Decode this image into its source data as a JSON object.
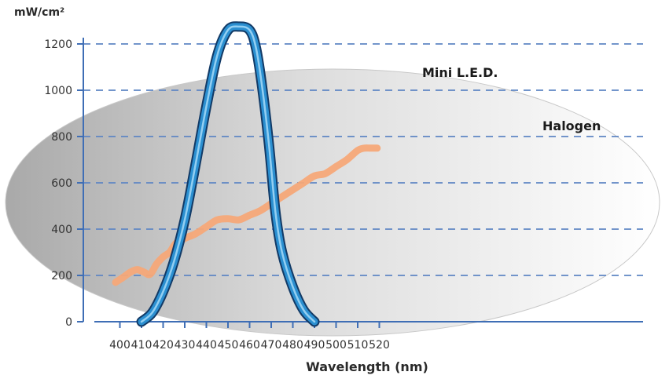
{
  "chart_data": {
    "type": "line",
    "ylabel": "mW/cm²",
    "xlabel": "Wavelength (nm)",
    "x_ticks": [
      400,
      410,
      420,
      430,
      440,
      450,
      460,
      470,
      480,
      490,
      500,
      510,
      520
    ],
    "y_ticks": [
      0,
      200,
      400,
      600,
      800,
      1000,
      1200
    ],
    "xlim": [
      396,
      522
    ],
    "ylim": [
      0,
      1300
    ],
    "grid": "horizontal dashed",
    "series": [
      {
        "name": "Mini L.E.D.",
        "color": "#2b8fd0",
        "x": [
          410,
          415,
          420,
          425,
          430,
          435,
          440,
          445,
          450,
          455,
          460,
          463,
          466,
          469,
          472,
          475,
          480,
          485,
          490
        ],
        "y": [
          0,
          40,
          130,
          260,
          440,
          680,
          930,
          1150,
          1260,
          1275,
          1260,
          1180,
          1000,
          760,
          470,
          300,
          150,
          50,
          0
        ]
      },
      {
        "name": "Halogen",
        "color": "#f5a878",
        "x": [
          398,
          402,
          405,
          408,
          411,
          414,
          417,
          420,
          423,
          426,
          430,
          435,
          440,
          445,
          450,
          455,
          460,
          465,
          470,
          475,
          480,
          485,
          490,
          495,
          500,
          505,
          510,
          513,
          516,
          519
        ],
        "y": [
          170,
          195,
          215,
          225,
          215,
          205,
          250,
          280,
          300,
          340,
          360,
          380,
          410,
          440,
          445,
          440,
          460,
          480,
          510,
          540,
          570,
          600,
          630,
          640,
          670,
          700,
          740,
          750,
          750,
          750
        ]
      }
    ]
  }
}
